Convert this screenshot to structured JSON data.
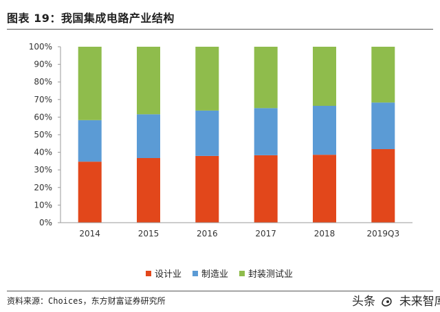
{
  "header": {
    "title": "图表 19：我国集成电路产业结构"
  },
  "footer": {
    "source": "资料来源：Choices，东方财富证券研究所",
    "watermark_left": "头条",
    "watermark_right": "未来智库"
  },
  "colors": {
    "design": "#e2471b",
    "manufacturing": "#5b9bd5",
    "packaging": "#8fbc4c",
    "axis": "#999999"
  },
  "chart_data": {
    "type": "bar",
    "stacked": true,
    "title": "",
    "xlabel": "",
    "ylabel": "",
    "ylim": [
      0,
      100
    ],
    "yticks": [
      "0%",
      "10%",
      "20%",
      "30%",
      "40%",
      "50%",
      "60%",
      "70%",
      "80%",
      "90%",
      "100%"
    ],
    "grid": false,
    "legend_position": "bottom",
    "categories": [
      "2014",
      "2015",
      "2016",
      "2017",
      "2018",
      "2019Q3"
    ],
    "series": [
      {
        "name": "设计业",
        "values": [
          34.7,
          36.7,
          37.9,
          38.3,
          38.6,
          41.8
        ]
      },
      {
        "name": "制造业",
        "values": [
          23.6,
          24.9,
          25.8,
          26.8,
          27.8,
          26.5
        ]
      },
      {
        "name": "封装测试业",
        "values": [
          41.7,
          38.4,
          36.3,
          34.9,
          33.6,
          31.7
        ]
      }
    ]
  }
}
